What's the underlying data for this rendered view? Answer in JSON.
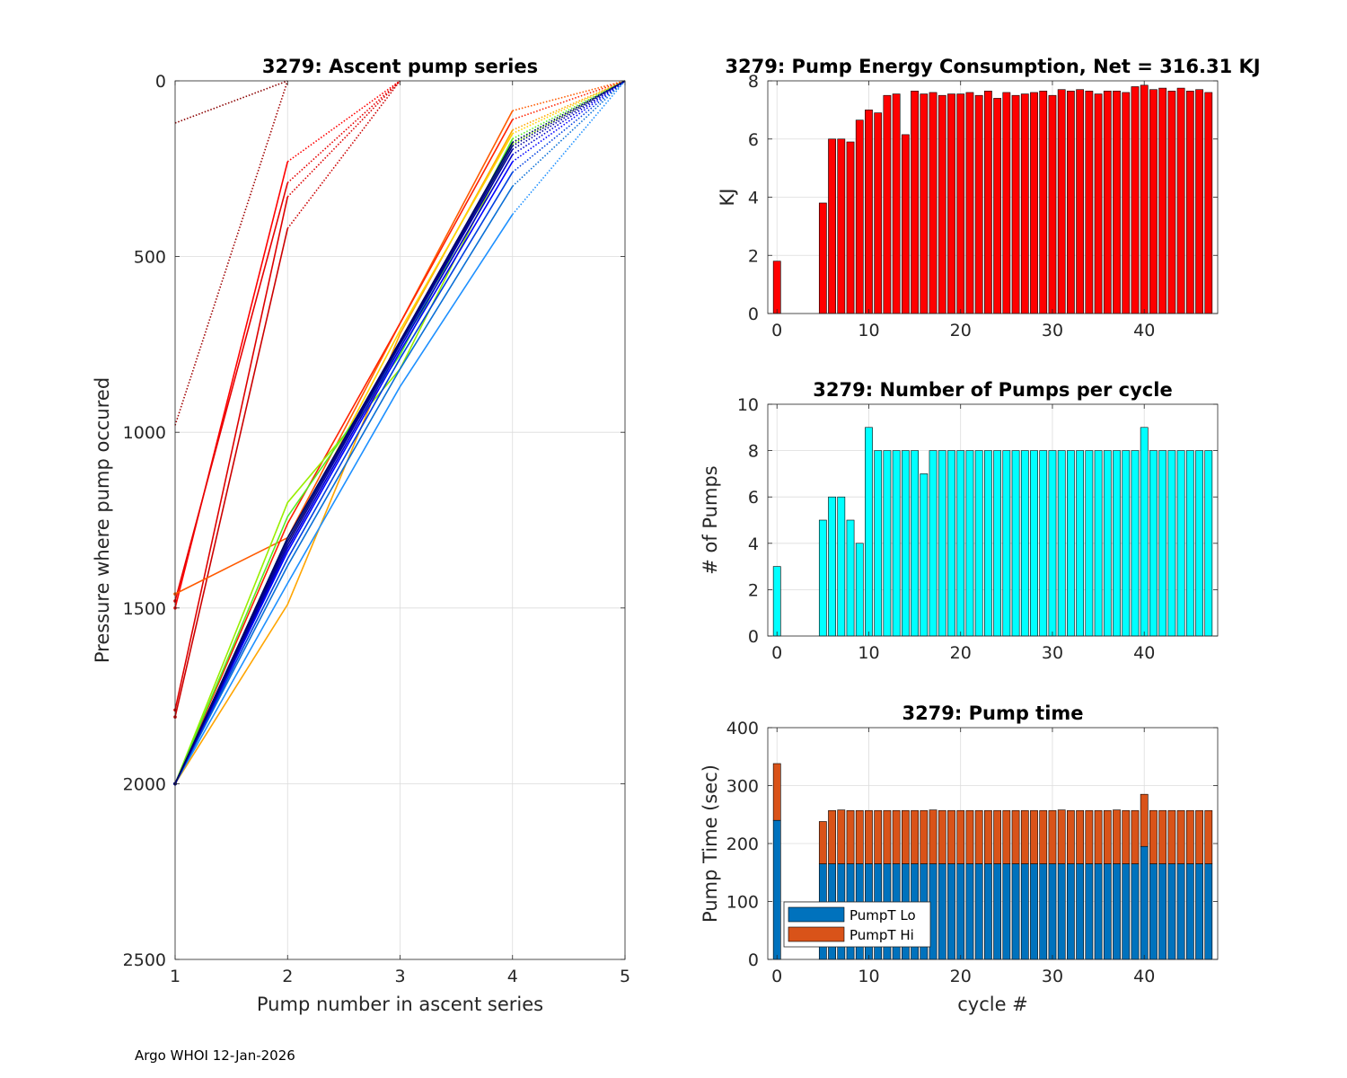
{
  "footer": "Argo WHOI 12-Jan-2026",
  "chart_data": [
    {
      "id": "ascent",
      "type": "line",
      "title": "3279: Ascent pump series",
      "xlabel": "Pump number in ascent series",
      "ylabel": "Pressure where pump occured",
      "xlim": [
        1,
        5
      ],
      "ylim": [
        0,
        2500
      ],
      "y_reversed": true,
      "xticks": [
        "1",
        "2",
        "3",
        "4",
        "5"
      ],
      "yticks": [
        "0",
        "500",
        "1000",
        "1500",
        "2000",
        "2500"
      ],
      "grid": true,
      "note": "Each series is the pressure of successive pumps during one ascent cycle; solid segments between pumps 1-4, dotted segments to the surface; color ramps from red (early cycles) to dark blue (late cycles).",
      "series": [
        {
          "color": "#8b0000",
          "solid": [],
          "dotted": [
            [
              1,
              120
            ],
            [
              2,
              0
            ]
          ]
        },
        {
          "color": "#a00000",
          "solid": [],
          "dotted": [
            [
              1,
              980
            ],
            [
              2,
              0
            ]
          ]
        },
        {
          "color": "#ff0000",
          "solid": [
            [
              1,
              1500
            ],
            [
              2,
              230
            ]
          ],
          "dotted": [
            [
              2,
              230
            ],
            [
              3,
              0
            ]
          ]
        },
        {
          "color": "#e60000",
          "solid": [
            [
              1,
              1480
            ],
            [
              2,
              290
            ]
          ],
          "dotted": [
            [
              2,
              290
            ],
            [
              3,
              0
            ]
          ]
        },
        {
          "color": "#dd0000",
          "solid": [
            [
              1,
              1790
            ],
            [
              2,
              330
            ]
          ],
          "dotted": [
            [
              2,
              330
            ],
            [
              3,
              0
            ]
          ]
        },
        {
          "color": "#cc0000",
          "solid": [
            [
              1,
              1810
            ],
            [
              2,
              420
            ]
          ],
          "dotted": [
            [
              2,
              420
            ],
            [
              3,
              0
            ]
          ]
        },
        {
          "color": "#ff5a00",
          "solid": [
            [
              1,
              1460
            ],
            [
              2,
              1300
            ],
            [
              3,
              690
            ],
            [
              4,
              85
            ]
          ],
          "dotted": [
            [
              4,
              85
            ],
            [
              5,
              0
            ]
          ]
        },
        {
          "color": "#ff2200",
          "solid": [
            [
              1,
              2000
            ],
            [
              2,
              1260
            ],
            [
              3,
              690
            ],
            [
              4,
              110
            ]
          ],
          "dotted": [
            [
              4,
              110
            ],
            [
              5,
              0
            ]
          ]
        },
        {
          "color": "#ffa500",
          "solid": [
            [
              1,
              2000
            ],
            [
              2,
              1490
            ],
            [
              3,
              720
            ],
            [
              4,
              140
            ]
          ],
          "dotted": [
            [
              4,
              140
            ],
            [
              5,
              0
            ]
          ]
        },
        {
          "color": "#ffd400",
          "solid": [
            [
              1,
              2000
            ],
            [
              2,
              1320
            ],
            [
              3,
              710
            ],
            [
              4,
              150
            ]
          ],
          "dotted": [
            [
              4,
              150
            ],
            [
              5,
              0
            ]
          ]
        },
        {
          "color": "#99ee00",
          "solid": [
            [
              1,
              2000
            ],
            [
              2,
              1200
            ],
            [
              3,
              820
            ],
            [
              4,
              180
            ]
          ],
          "dotted": [
            [
              4,
              180
            ],
            [
              5,
              0
            ]
          ]
        },
        {
          "color": "#55ee22",
          "solid": [
            [
              1,
              2000
            ],
            [
              2,
              1240
            ],
            [
              3,
              780
            ],
            [
              4,
              165
            ]
          ],
          "dotted": [
            [
              4,
              165
            ],
            [
              5,
              0
            ]
          ]
        },
        {
          "color": "#33cc88",
          "solid": [
            [
              1,
              2000
            ],
            [
              2,
              1300
            ],
            [
              3,
              760
            ],
            [
              4,
              175
            ]
          ],
          "dotted": [
            [
              4,
              175
            ],
            [
              5,
              0
            ]
          ]
        },
        {
          "color": "#1e90ff",
          "solid": [
            [
              1,
              2000
            ],
            [
              2,
              1430
            ],
            [
              3,
              870
            ],
            [
              4,
              380
            ]
          ],
          "dotted": [
            [
              4,
              380
            ],
            [
              5,
              0
            ]
          ]
        },
        {
          "color": "#0a6fd6",
          "solid": [
            [
              1,
              2000
            ],
            [
              2,
              1380
            ],
            [
              3,
              820
            ],
            [
              4,
              300
            ]
          ],
          "dotted": [
            [
              4,
              300
            ],
            [
              5,
              0
            ]
          ]
        },
        {
          "color": "#0040e0",
          "solid": [
            [
              1,
              2000
            ],
            [
              2,
              1360
            ],
            [
              3,
              790
            ],
            [
              4,
              260
            ]
          ],
          "dotted": [
            [
              4,
              260
            ],
            [
              5,
              0
            ]
          ]
        },
        {
          "color": "#0000ff",
          "solid": [
            [
              1,
              2000
            ],
            [
              2,
              1340
            ],
            [
              3,
              770
            ],
            [
              4,
              230
            ]
          ],
          "dotted": [
            [
              4,
              230
            ],
            [
              5,
              0
            ]
          ]
        },
        {
          "color": "#0000cc",
          "solid": [
            [
              1,
              2000
            ],
            [
              2,
              1330
            ],
            [
              3,
              760
            ],
            [
              4,
              210
            ]
          ],
          "dotted": [
            [
              4,
              210
            ],
            [
              5,
              0
            ]
          ]
        },
        {
          "color": "#0000a0",
          "solid": [
            [
              1,
              2000
            ],
            [
              2,
              1320
            ],
            [
              3,
              750
            ],
            [
              4,
              195
            ]
          ],
          "dotted": [
            [
              4,
              195
            ],
            [
              5,
              0
            ]
          ]
        },
        {
          "color": "#00008b",
          "solid": [
            [
              1,
              2000
            ],
            [
              2,
              1310
            ],
            [
              3,
              745
            ],
            [
              4,
              185
            ]
          ],
          "dotted": [
            [
              4,
              185
            ],
            [
              5,
              0
            ]
          ]
        },
        {
          "color": "#000066",
          "solid": [
            [
              1,
              2000
            ],
            [
              2,
              1300
            ],
            [
              3,
              740
            ],
            [
              4,
              175
            ]
          ],
          "dotted": [
            [
              4,
              175
            ],
            [
              5,
              0
            ]
          ]
        }
      ]
    },
    {
      "id": "energy",
      "type": "bar",
      "title": "3279: Pump Energy Consumption,  Net = 316.31 KJ",
      "xlabel": "",
      "ylabel": "KJ",
      "xlim": [
        -1,
        48
      ],
      "ylim": [
        0,
        8
      ],
      "xticks": [
        "0",
        "10",
        "20",
        "30",
        "40"
      ],
      "yticks": [
        "0",
        "2",
        "4",
        "6",
        "8"
      ],
      "bar_color": "#ff0000",
      "x": [
        0,
        5,
        6,
        7,
        8,
        9,
        10,
        11,
        12,
        13,
        14,
        15,
        16,
        17,
        18,
        19,
        20,
        21,
        22,
        23,
        24,
        25,
        26,
        27,
        28,
        29,
        30,
        31,
        32,
        33,
        34,
        35,
        36,
        37,
        38,
        39,
        40,
        41,
        42,
        43,
        44,
        45,
        46,
        47
      ],
      "values": [
        1.8,
        3.8,
        6.0,
        6.0,
        5.9,
        6.65,
        7.0,
        6.9,
        7.5,
        7.55,
        6.15,
        7.65,
        7.55,
        7.6,
        7.5,
        7.55,
        7.55,
        7.6,
        7.5,
        7.65,
        7.4,
        7.6,
        7.5,
        7.55,
        7.6,
        7.65,
        7.5,
        7.7,
        7.65,
        7.7,
        7.65,
        7.55,
        7.65,
        7.65,
        7.6,
        7.8,
        7.85,
        7.7,
        7.75,
        7.65,
        7.75,
        7.65,
        7.7,
        7.6
      ]
    },
    {
      "id": "npumps",
      "type": "bar",
      "title": "3279: Number of Pumps per cycle",
      "xlabel": "",
      "ylabel": "# of Pumps",
      "xlim": [
        -1,
        48
      ],
      "ylim": [
        0,
        10
      ],
      "xticks": [
        "0",
        "10",
        "20",
        "30",
        "40"
      ],
      "yticks": [
        "0",
        "2",
        "4",
        "6",
        "8",
        "10"
      ],
      "bar_color": "#00ffff",
      "x": [
        0,
        5,
        6,
        7,
        8,
        9,
        10,
        11,
        12,
        13,
        14,
        15,
        16,
        17,
        18,
        19,
        20,
        21,
        22,
        23,
        24,
        25,
        26,
        27,
        28,
        29,
        30,
        31,
        32,
        33,
        34,
        35,
        36,
        37,
        38,
        39,
        40,
        41,
        42,
        43,
        44,
        45,
        46,
        47
      ],
      "values": [
        3,
        5,
        6,
        6,
        5,
        4,
        9,
        8,
        8,
        8,
        8,
        8,
        7,
        8,
        8,
        8,
        8,
        8,
        8,
        8,
        8,
        8,
        8,
        8,
        8,
        8,
        8,
        8,
        8,
        8,
        8,
        8,
        8,
        8,
        8,
        8,
        9,
        8,
        8,
        8,
        8,
        8,
        8,
        8
      ]
    },
    {
      "id": "pumptime",
      "type": "bar",
      "stacked": true,
      "title": "3279: Pump time",
      "xlabel": "cycle #",
      "ylabel": "Pump Time (sec)",
      "xlim": [
        -1,
        48
      ],
      "ylim": [
        0,
        400
      ],
      "xticks": [
        "0",
        "10",
        "20",
        "30",
        "40"
      ],
      "yticks": [
        "0",
        "100",
        "200",
        "300",
        "400"
      ],
      "legend": "bottom-left",
      "x": [
        0,
        5,
        6,
        7,
        8,
        9,
        10,
        11,
        12,
        13,
        14,
        15,
        16,
        17,
        18,
        19,
        20,
        21,
        22,
        23,
        24,
        25,
        26,
        27,
        28,
        29,
        30,
        31,
        32,
        33,
        34,
        35,
        36,
        37,
        38,
        39,
        40,
        41,
        42,
        43,
        44,
        45,
        46,
        47
      ],
      "series": [
        {
          "name": "PumpT Lo",
          "color": "#0072bd",
          "values": [
            240,
            165,
            165,
            165,
            165,
            165,
            165,
            165,
            165,
            165,
            165,
            165,
            165,
            165,
            165,
            165,
            165,
            165,
            165,
            165,
            165,
            165,
            165,
            165,
            165,
            165,
            165,
            165,
            165,
            165,
            165,
            165,
            165,
            165,
            165,
            165,
            195,
            165,
            165,
            165,
            165,
            165,
            165,
            165
          ]
        },
        {
          "name": "PumpT Hi",
          "color": "#d95319",
          "values": [
            98,
            73,
            92,
            93,
            92,
            92,
            92,
            92,
            92,
            92,
            92,
            92,
            92,
            93,
            92,
            92,
            92,
            92,
            92,
            92,
            92,
            92,
            92,
            92,
            92,
            92,
            92,
            93,
            92,
            92,
            92,
            92,
            92,
            93,
            92,
            92,
            90,
            92,
            92,
            92,
            92,
            92,
            92,
            92
          ]
        }
      ]
    }
  ]
}
